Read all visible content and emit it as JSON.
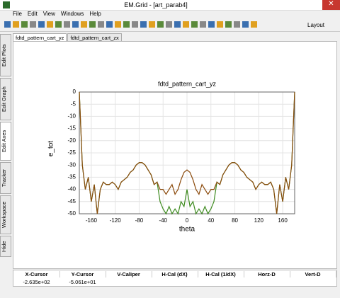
{
  "window": {
    "title": "EM.Grid - [art_parab4]"
  },
  "menu": [
    "File",
    "Edit",
    "View",
    "Windows",
    "Help"
  ],
  "toolbar": {
    "layout": "Layout"
  },
  "side_tabs": [
    "Edit Plots",
    "Edit Graph",
    "Edit Axes",
    "Tracker",
    "Workspace",
    "Hide"
  ],
  "tabs": [
    "fdtd_pattern_cart_yz",
    "fdtd_pattern_cart_zx"
  ],
  "chart_data": {
    "type": "line",
    "title": "fdtd_pattern_cart_yz",
    "x_label": "theta",
    "y_label": "e_tot",
    "x": [
      -180,
      -175,
      -170,
      -165,
      -160,
      -155,
      -150,
      -145,
      -140,
      -135,
      -130,
      -125,
      -120,
      -115,
      -110,
      -105,
      -100,
      -95,
      -90,
      -85,
      -80,
      -75,
      -70,
      -65,
      -60,
      -55,
      -50,
      -45,
      -40,
      -35,
      -30,
      -25,
      -20,
      -15,
      -10,
      -5,
      0,
      5,
      10,
      15,
      20,
      25,
      30,
      35,
      40,
      45,
      50,
      55,
      60,
      65,
      70,
      75,
      80,
      85,
      90,
      95,
      100,
      105,
      110,
      115,
      120,
      125,
      130,
      135,
      140,
      145,
      150,
      155,
      160,
      165,
      170,
      175,
      180
    ],
    "series": [
      {
        "name": "green",
        "color": "#3d8a1e",
        "values": [
          0,
          -30,
          -40,
          -35,
          -45,
          -38,
          -50,
          -40,
          -37,
          -38,
          -38,
          -37,
          -38,
          -40,
          -37,
          -36,
          -35,
          -33,
          -32,
          -30,
          -29,
          -29,
          -30,
          -32,
          -34,
          -38,
          -37,
          -45,
          -48,
          -50,
          -47,
          -50,
          -48,
          -50,
          -45,
          -47,
          -40,
          -47,
          -45,
          -50,
          -48,
          -50,
          -47,
          -50,
          -48,
          -45,
          -37,
          -38,
          -34,
          -32,
          -30,
          -29,
          -29,
          -30,
          -32,
          -33,
          -35,
          -36,
          -37,
          -40,
          -38,
          -37,
          -38,
          -38,
          -37,
          -40,
          -50,
          -38,
          -45,
          -35,
          -40,
          -30,
          0
        ]
      },
      {
        "name": "brown",
        "color": "#8b4a0c",
        "values": [
          0,
          -30,
          -40,
          -35,
          -45,
          -38,
          -50,
          -40,
          -37,
          -38,
          -38,
          -37,
          -38,
          -40,
          -37,
          -36,
          -35,
          -33,
          -32,
          -30,
          -29,
          -29,
          -30,
          -32,
          -34,
          -38,
          -37,
          -40,
          -40,
          -42,
          -40,
          -38,
          -42,
          -40,
          -36,
          -33,
          -32,
          -33,
          -36,
          -40,
          -42,
          -38,
          -40,
          -42,
          -40,
          -40,
          -37,
          -38,
          -34,
          -32,
          -30,
          -29,
          -29,
          -30,
          -32,
          -33,
          -35,
          -36,
          -37,
          -40,
          -38,
          -37,
          -38,
          -38,
          -37,
          -40,
          -50,
          -38,
          -45,
          -35,
          -40,
          -30,
          0
        ]
      }
    ],
    "xlim": [
      -180,
      180
    ],
    "ylim": [
      -50,
      0
    ],
    "xticks": [
      -160,
      -120,
      -80,
      -40,
      0,
      40,
      80,
      120,
      160
    ],
    "yticks": [
      0,
      -5,
      -10,
      -15,
      -20,
      -25,
      -30,
      -35,
      -40,
      -45,
      -50
    ],
    "grid": true
  },
  "status": {
    "headers": [
      "X-Cursor",
      "Y-Cursor",
      "V-Caliper",
      "H-Cal (dX)",
      "H-Cal (1/dX)",
      "Horz-D",
      "Vert-D"
    ],
    "values": [
      "-2.635e+02",
      "-5.061e+01"
    ]
  }
}
